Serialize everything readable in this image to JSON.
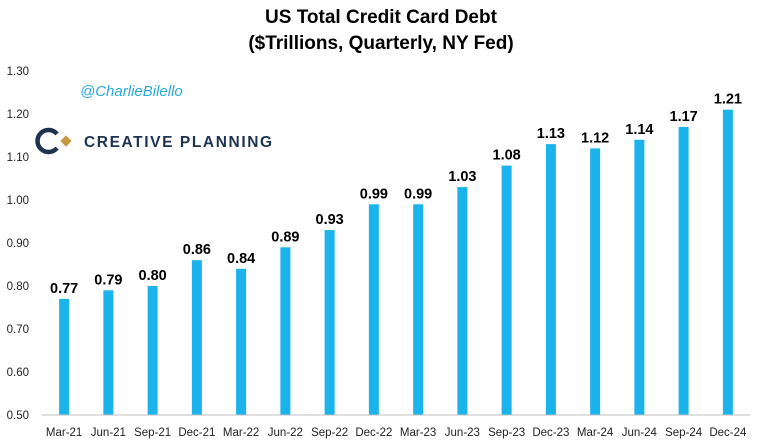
{
  "chart_data": {
    "type": "bar",
    "title_line1": "US Total Credit Card Debt",
    "title_line2": "($Trillions, Quarterly, NY Fed)",
    "categories": [
      "Mar-21",
      "Jun-21",
      "Sep-21",
      "Dec-21",
      "Mar-22",
      "Jun-22",
      "Sep-22",
      "Dec-22",
      "Mar-23",
      "Jun-23",
      "Sep-23",
      "Dec-23",
      "Mar-24",
      "Jun-24",
      "Sep-24",
      "Dec-24"
    ],
    "values": [
      0.77,
      0.79,
      0.8,
      0.86,
      0.84,
      0.89,
      0.93,
      0.99,
      0.99,
      1.03,
      1.08,
      1.13,
      1.12,
      1.14,
      1.17,
      1.21
    ],
    "value_labels": [
      "0.77",
      "0.79",
      "0.80",
      "0.86",
      "0.84",
      "0.89",
      "0.93",
      "0.99",
      "0.99",
      "1.03",
      "1.08",
      "1.13",
      "1.12",
      "1.14",
      "1.17",
      "1.21"
    ],
    "y_ticks": [
      0.5,
      0.6,
      0.7,
      0.8,
      0.9,
      1.0,
      1.1,
      1.2,
      1.3
    ],
    "y_tick_labels": [
      "0.50",
      "0.60",
      "0.70",
      "0.80",
      "0.90",
      "1.00",
      "1.10",
      "1.20",
      "1.30"
    ],
    "ylim": [
      0.5,
      1.3
    ],
    "xlabel": "",
    "ylabel": "",
    "grid": false,
    "legend": "none",
    "bar_color": "#1ab3ec"
  },
  "watermark": {
    "handle": "@CharlieBilello",
    "brand": "CREATIVE PLANNING",
    "handle_color": "#2aa8e0",
    "brand_color": "#1e3350",
    "logo_icon": "creative-planning-logo-icon"
  }
}
